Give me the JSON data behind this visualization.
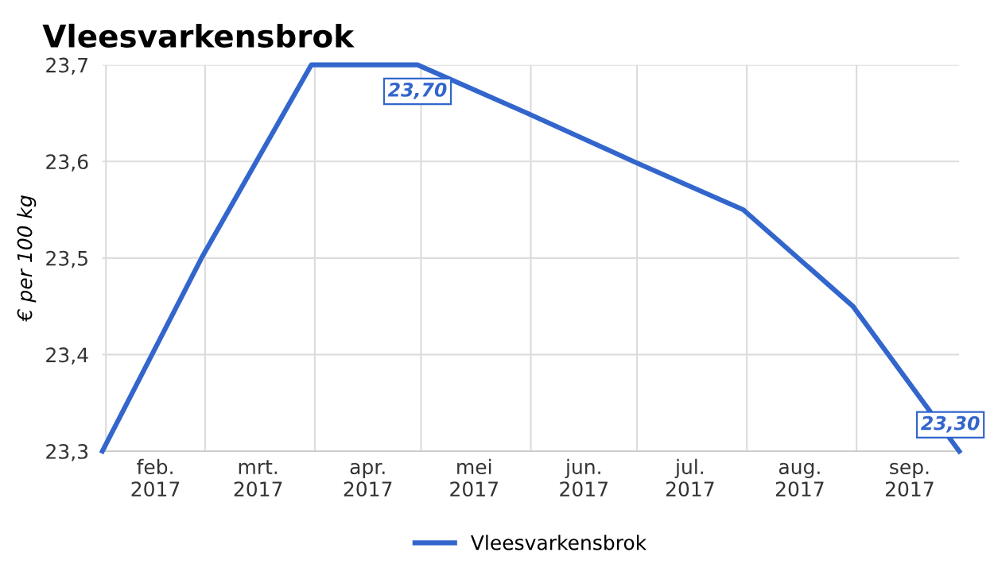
{
  "chart_data": {
    "type": "line",
    "title": "Vleesvarkensbrok",
    "ylabel": "€ per 100 kg",
    "x": [
      "2017-01-31",
      "2017-02-28",
      "2017-03-31",
      "2017-04-30",
      "2017-05-31",
      "2017-06-30",
      "2017-07-31",
      "2017-08-31",
      "2017-09-30"
    ],
    "series": [
      {
        "name": "Vleesvarkensbrok",
        "color": "#3366cc",
        "values": [
          23.3,
          23.5,
          23.7,
          23.7,
          23.65,
          23.6,
          23.55,
          23.45,
          23.3
        ],
        "value_labels": [
          null,
          null,
          null,
          "23,70",
          null,
          null,
          null,
          null,
          "23,30"
        ]
      }
    ],
    "xlim": [
      "2017-01-31",
      "2017-09-30"
    ],
    "xticks": [
      {
        "value": "2017-02-01",
        "label": null
      },
      {
        "value": "2017-03-01",
        "label": null
      },
      {
        "value": "2017-04-01",
        "label": null
      },
      {
        "value": "2017-05-01",
        "label": null
      },
      {
        "value": "2017-06-01",
        "label": null
      },
      {
        "value": "2017-07-01",
        "label": null
      },
      {
        "value": "2017-08-01",
        "label": null
      },
      {
        "value": "2017-09-01",
        "label": null
      },
      {
        "value": "2017-02-15",
        "label": "feb.\n2017"
      },
      {
        "value": "2017-03-16",
        "label": "mrt.\n2017"
      },
      {
        "value": "2017-04-16",
        "label": "apr.\n2017"
      },
      {
        "value": "2017-05-16",
        "label": "mei\n2017"
      },
      {
        "value": "2017-06-16",
        "label": "jun.\n2017"
      },
      {
        "value": "2017-07-16",
        "label": "jul.\n2017"
      },
      {
        "value": "2017-08-16",
        "label": "aug.\n2017"
      },
      {
        "value": "2017-09-16",
        "label": "sep.\n2017"
      }
    ],
    "ylim": [
      23.3,
      23.7
    ],
    "yticks": [
      {
        "value": 23.3,
        "label": "23,3"
      },
      {
        "value": 23.4,
        "label": "23,4"
      },
      {
        "value": 23.5,
        "label": "23,5"
      },
      {
        "value": 23.6,
        "label": "23,6"
      },
      {
        "value": 23.7,
        "label": "23,7"
      }
    ],
    "grid": true,
    "legend": "bottom",
    "marker": "none",
    "line_style": "solid"
  }
}
